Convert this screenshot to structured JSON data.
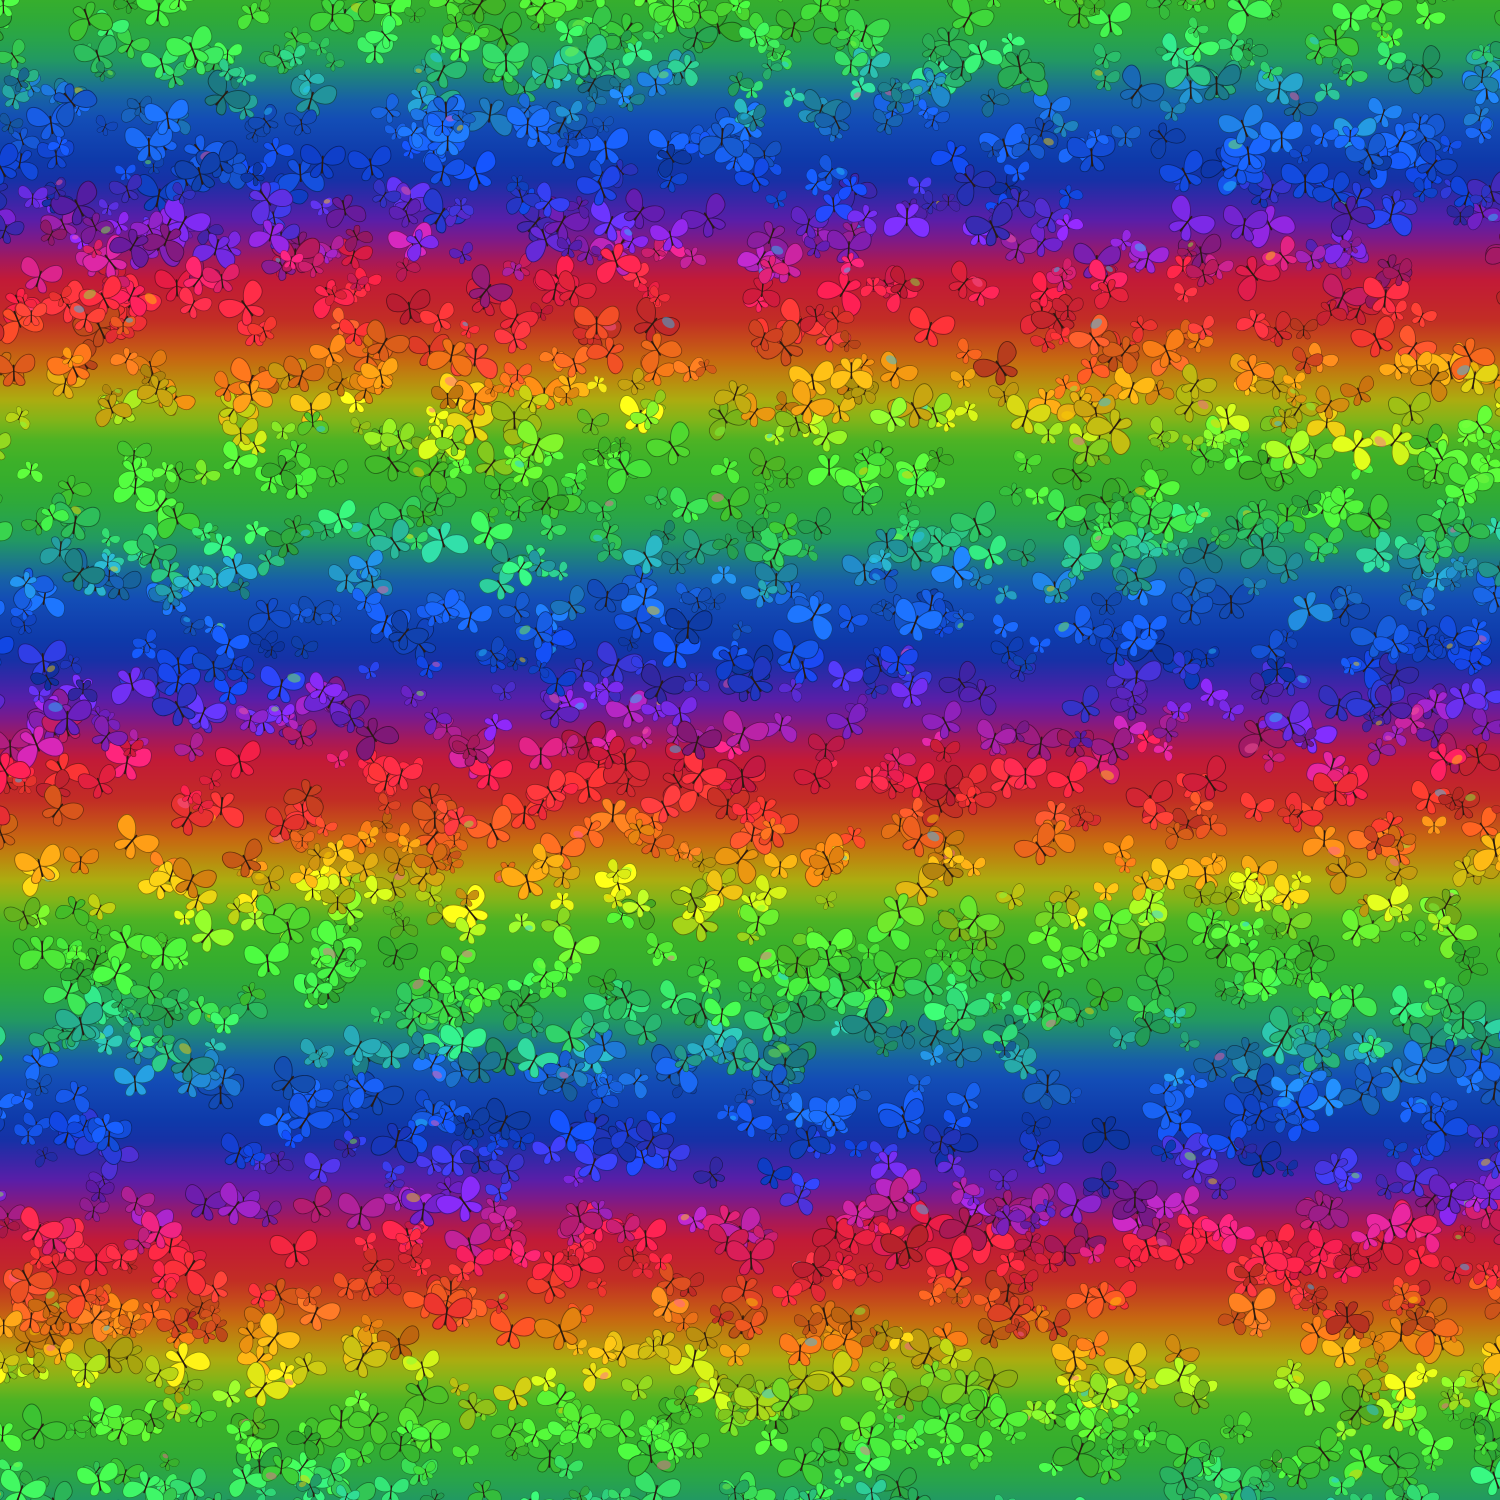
{
  "image": {
    "subject": "rainbow-butterfly-fabric-pattern",
    "band_colors": [
      {
        "phase": 0,
        "color": "#3fd83a"
      },
      {
        "phase": 45,
        "color": "#2cc870"
      },
      {
        "phase": 100,
        "color": "#1a66e6"
      },
      {
        "phase": 165,
        "color": "#1040d0"
      },
      {
        "phase": 215,
        "color": "#7a22d2"
      },
      {
        "phase": 265,
        "color": "#f21e48"
      },
      {
        "phase": 310,
        "color": "#f2382e"
      },
      {
        "phase": 355,
        "color": "#f98c12"
      },
      {
        "phase": 395,
        "color": "#d2e214"
      },
      {
        "phase": 435,
        "color": "#52e030"
      },
      {
        "phase": 480,
        "color": "#3fd83a"
      }
    ],
    "band_period": 480,
    "accent_colors": [
      "#25c8ff",
      "#ffd000",
      "#7fff40",
      "#ff5aa0"
    ]
  }
}
